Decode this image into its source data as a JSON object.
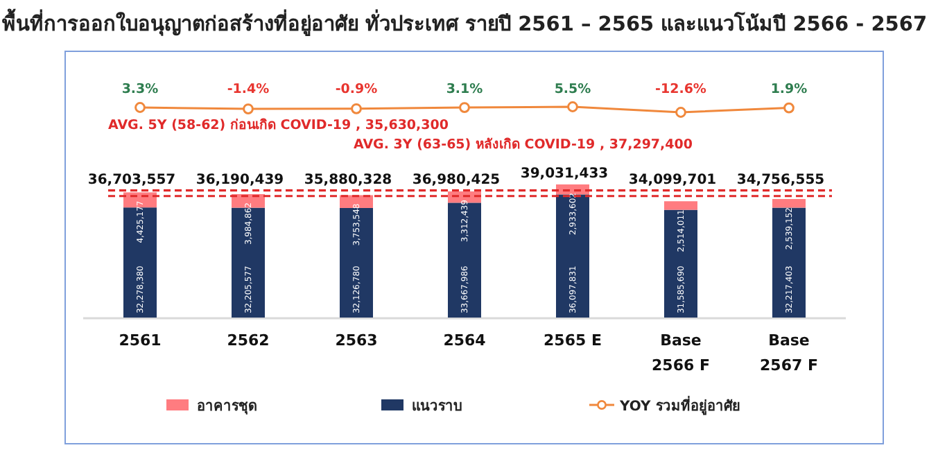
{
  "chart_data": [
    {
      "type": "line",
      "title": "พื้นที่การออกใบอนุญาตก่อสร้างที่อยู่อาศัย ทั่วประเทศ รายปี 2561 – 2565 และแนวโน้มปี 2566 - 2567",
      "categories": [
        null,
        null,
        null,
        null,
        null,
        null,
        null
      ],
      "series": [
        {
          "name": "YOY รวมที่อยู่อาศัย",
          "color": "#f0883c",
          "values": [
            3.3,
            -1.4,
            -0.9,
            3.1,
            5.5,
            -12.6,
            1.9
          ],
          "value_labels": [
            "3.3%",
            "-1.4%",
            "-0.9%",
            "3.1%",
            "5.5%",
            "-12.6%",
            "1.9%"
          ]
        }
      ],
      "marker": "circle",
      "legend": "bottom",
      "tick_labels": false
    },
    {
      "type": "bar",
      "stacked": true,
      "categories": [
        "2561",
        "2562",
        "2563",
        "2564",
        "2565 E",
        "Base 2566 F",
        "Base 2567 F"
      ],
      "series": [
        {
          "name": "แนวราบ",
          "color": "#203864",
          "values": [
            32278380,
            32205577,
            32126780,
            33667986,
            36097831,
            31585690,
            32217403
          ],
          "value_labels": [
            "32,278,380",
            "32,205,577",
            "32,126,780",
            "33,667,986",
            "36,097,831",
            "31,585,690",
            "32,217,403"
          ]
        },
        {
          "name": "อาคารชุด",
          "color": "#ff7c80",
          "values": [
            4425177,
            3984862,
            3753548,
            3312439,
            2933602,
            2514011,
            2539152
          ],
          "value_labels": [
            "4,425,177",
            "3,984,862",
            "3,753,548",
            "3,312,439",
            "2,933,602",
            "2,514,011",
            "2,539,152"
          ]
        }
      ],
      "totals": [
        "36,703,557",
        "36,190,439",
        "35,880,328",
        "36,980,425",
        "39,031,433",
        "34,099,701",
        "34,756,555"
      ],
      "ref_lines": [
        {
          "axis": "y",
          "value": 35630300,
          "label": "AVG. 5Y (58-62) ก่อนเกิด COVID-19 , 35,630,300",
          "color": "#e02a2a",
          "line_style": "dashed"
        },
        {
          "axis": "y",
          "value": 37297400,
          "label": "AVG. 3Y (63-65) หลังเกิด COVID-19 , 37,297,400",
          "color": "#e02a2a",
          "line_style": "dashed"
        }
      ],
      "legend": "bottom",
      "tick_labels": "x"
    }
  ]
}
